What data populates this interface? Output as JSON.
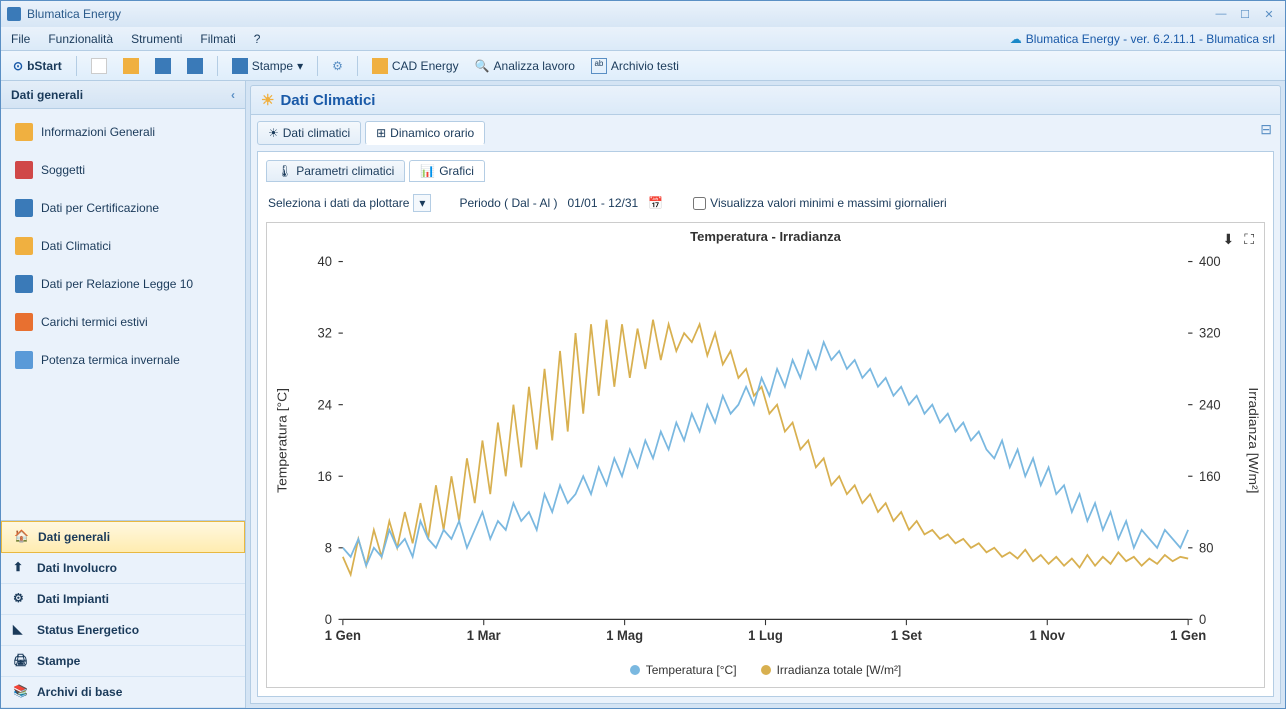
{
  "app": {
    "title": "Blumatica Energy",
    "version_label": "Blumatica Energy - ver. 6.2.11.1 - Blumatica srl"
  },
  "menu": {
    "items": [
      "File",
      "Funzionalità",
      "Strumenti",
      "Filmati",
      "?"
    ]
  },
  "toolbar": {
    "bstart": "bStart",
    "stampe": "Stampe",
    "cad": "CAD Energy",
    "analizza": "Analizza lavoro",
    "archivio": "Archivio testi"
  },
  "sidebar": {
    "header": "Dati generali",
    "tree": [
      {
        "label": "Informazioni Generali",
        "icon_color": "#f0b040"
      },
      {
        "label": "Soggetti",
        "icon_color": "#d04848"
      },
      {
        "label": "Dati per Certificazione",
        "icon_color": "#3a7ab8"
      },
      {
        "label": "Dati Climatici",
        "icon_color": "#f0b040"
      },
      {
        "label": "Dati per Relazione Legge 10",
        "icon_color": "#3a7ab8"
      },
      {
        "label": "Carichi termici estivi",
        "icon_color": "#e87030"
      },
      {
        "label": "Potenza termica invernale",
        "icon_color": "#5a9ad8"
      }
    ],
    "bottom": [
      {
        "label": "Dati generali",
        "active": true
      },
      {
        "label": "Dati Involucro",
        "active": false
      },
      {
        "label": "Dati Impianti",
        "active": false
      },
      {
        "label": "Status Energetico",
        "active": false
      },
      {
        "label": "Stampe",
        "active": false
      },
      {
        "label": "Archivi di base",
        "active": false
      }
    ]
  },
  "content": {
    "title": "Dati Climatici",
    "tabs": [
      {
        "label": "Dati climatici",
        "active": false
      },
      {
        "label": "Dinamico orario",
        "active": true
      }
    ],
    "subtabs": [
      {
        "label": "Parametri climatici",
        "active": false
      },
      {
        "label": "Grafici",
        "active": true
      }
    ],
    "controls": {
      "plot_label": "Seleziona i dati da plottare",
      "periodo_label": "Periodo ( Dal - Al )",
      "periodo_value": "01/01 - 12/31",
      "checkbox_label": "Visualizza valori minimi e massimi giornalieri"
    }
  },
  "chart": {
    "title": "Temperatura - Irradianza",
    "left_axis_label": "Temperatura [°C]",
    "right_axis_label": "Irradianza [W/m²]",
    "left_ticks": [
      0,
      8,
      16,
      24,
      32,
      40
    ],
    "right_ticks": [
      0,
      80,
      160,
      240,
      320,
      400
    ],
    "x_ticks": [
      "1 Gen",
      "1 Mar",
      "1 Mag",
      "1 Lug",
      "1 Set",
      "1 Nov",
      "1 Gen"
    ],
    "series": [
      {
        "name": "Temperatura [°C]",
        "color": "#7ab8e0"
      },
      {
        "name": "Irradianza totale [W/m²]",
        "color": "#d8b050"
      }
    ],
    "colors": {
      "temp": "#7ab8e0",
      "irr": "#d8b050",
      "grid": "#e0e0e0",
      "axis": "#333333",
      "bg": "#ffffff"
    },
    "temp_data": [
      8,
      7,
      9,
      6,
      8,
      7,
      10,
      8,
      9,
      7,
      11,
      9,
      8,
      10,
      9,
      11,
      8,
      10,
      12,
      9,
      11,
      10,
      13,
      11,
      12,
      10,
      14,
      12,
      15,
      13,
      14,
      16,
      14,
      17,
      15,
      18,
      16,
      19,
      17,
      20,
      18,
      21,
      19,
      22,
      20,
      23,
      21,
      24,
      22,
      25,
      23,
      24,
      26,
      24,
      27,
      25,
      28,
      26,
      29,
      27,
      30,
      28,
      31,
      29,
      30,
      28,
      29,
      27,
      28,
      26,
      27,
      25,
      26,
      24,
      25,
      23,
      24,
      22,
      23,
      21,
      22,
      20,
      21,
      19,
      18,
      20,
      17,
      19,
      16,
      18,
      15,
      17,
      14,
      15,
      12,
      14,
      11,
      13,
      10,
      12,
      9,
      11,
      8,
      10,
      9,
      8,
      10,
      9,
      8,
      10
    ],
    "irr_data": [
      70,
      50,
      90,
      60,
      100,
      70,
      110,
      80,
      120,
      85,
      130,
      90,
      150,
      100,
      160,
      110,
      180,
      130,
      200,
      140,
      220,
      160,
      240,
      170,
      260,
      190,
      280,
      200,
      300,
      210,
      320,
      230,
      330,
      250,
      335,
      260,
      330,
      270,
      325,
      280,
      335,
      290,
      330,
      300,
      320,
      310,
      330,
      295,
      320,
      285,
      300,
      270,
      280,
      250,
      260,
      230,
      240,
      210,
      220,
      190,
      200,
      170,
      180,
      150,
      160,
      140,
      150,
      130,
      140,
      120,
      130,
      110,
      120,
      100,
      110,
      95,
      100,
      90,
      95,
      85,
      90,
      80,
      85,
      75,
      80,
      70,
      75,
      68,
      78,
      65,
      72,
      62,
      70,
      60,
      68,
      58,
      72,
      60,
      70,
      62,
      75,
      65,
      70,
      60,
      68,
      62,
      72,
      65,
      70,
      68
    ]
  }
}
